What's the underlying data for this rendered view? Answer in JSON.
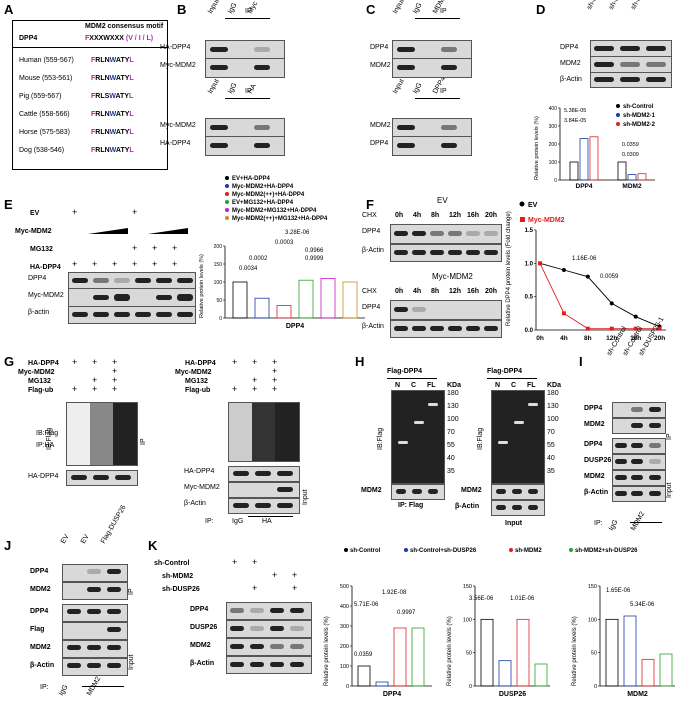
{
  "panels": {
    "A": {
      "label": "A",
      "col1": "DPP4",
      "col2": "MDM2 consensus motif",
      "motif_prefix": "F",
      "motif_mid": "XXXWXXX",
      "motif_suffix": "(V / I / L)",
      "rows": [
        {
          "species": "Human (559-567)",
          "seq": [
            "F",
            "RLN",
            "W",
            "ATY",
            "L"
          ]
        },
        {
          "species": "Mouse (553-561)",
          "seq": [
            "F",
            "RLN",
            "W",
            "ATY",
            "L"
          ]
        },
        {
          "species": "Pig (559-567)",
          "seq": [
            "F",
            "RLS",
            "W",
            "ATY",
            "L"
          ]
        },
        {
          "species": "Cattle (558-566)",
          "seq": [
            "F",
            "RLN",
            "W",
            "ATY",
            "L"
          ]
        },
        {
          "species": "Horse (575-583)",
          "seq": [
            "F",
            "RLN",
            "W",
            "ATY",
            "L"
          ]
        },
        {
          "species": "Dog (538-546)",
          "seq": [
            "F",
            "RLN",
            "W",
            "ATY",
            "L"
          ]
        }
      ]
    },
    "B": {
      "label": "B",
      "ip": "IP",
      "lanes1": [
        "Input",
        "IgG",
        "Myc"
      ],
      "rows1": [
        "HA-DPP4",
        "Myc-MDM2"
      ],
      "lanes2": [
        "Input",
        "IgG",
        "HA"
      ],
      "rows2": [
        "Myc-MDM2",
        "HA-DPP4"
      ]
    },
    "C": {
      "label": "C",
      "ip": "IP",
      "lanes1": [
        "Input",
        "IgG",
        "MDM2"
      ],
      "rows1": [
        "DPP4",
        "MDM2"
      ],
      "lanes2": [
        "Input",
        "IgG",
        "DPP4"
      ],
      "rows2": [
        "MDM2",
        "DPP4"
      ]
    },
    "D": {
      "label": "D",
      "lanes": [
        "sh-Control",
        "sh-MDM2-1",
        "sh-MDM2-2"
      ],
      "rows": [
        "DPP4",
        "MDM2",
        "β-Actin"
      ],
      "legend": [
        "sh-Control",
        "sh-MDM2-1",
        "sh-MDM2-2"
      ],
      "ylabel": "Relative protein levels (%)",
      "groups": [
        "DPP4",
        "MDM2"
      ],
      "stats": [
        "5.38E-05",
        "3.84E-05",
        "0.0359",
        "0.0309"
      ]
    },
    "E": {
      "label": "E",
      "row_labels": [
        "EV",
        "Myc-MDM2",
        "MG132",
        "HA-DPP4"
      ],
      "blot_rows": [
        "DPP4",
        "Myc-MDM2",
        "β-actin"
      ],
      "signs_ev": [
        "+",
        "",
        "",
        "+",
        "",
        ""
      ],
      "signs_mg": [
        "",
        "",
        "",
        "+",
        "+",
        "+"
      ],
      "signs_ha": [
        "+",
        "+",
        "+",
        "+",
        "+",
        "+"
      ],
      "legend": [
        "EV+HA-DPP4",
        "Myc-MDM2+HA-DPP4",
        "Myc-MDM2(++)+HA-DPP4",
        "EV+MG132+HA-DPP4",
        "Myc-MDM2+MG132+HA-DPP4",
        "Myc-MDM2(++)+MG132+HA-DPP4"
      ],
      "ylabel": "Relative protein levels (%)",
      "xlabel": "DPP4",
      "stats": [
        "0.0034",
        "0.0002",
        "0.9999",
        "0.9966",
        "0.0003",
        "3.28E-06"
      ]
    },
    "F": {
      "label": "F",
      "ev_title": "EV",
      "mdm_title": "Myc-MDM2",
      "chx": "CHX",
      "times": [
        "0h",
        "4h",
        "8h",
        "12h",
        "16h",
        "20h"
      ],
      "rows": [
        "DPP4",
        "β-Actin"
      ],
      "legend": [
        "EV",
        "Myc-MDM2"
      ],
      "ylabel": "Relative DPP4 protein levels (Fold change)",
      "stats": [
        "1.16E-06",
        "0.0059"
      ]
    },
    "G": {
      "label": "G",
      "rows": [
        "HA-DPP4",
        "Myc-MDM2",
        "MG132",
        "Flag-ub"
      ],
      "blot_ib": "IB:Flag",
      "blot_ip": "IP:HA",
      "ip_side": "IP",
      "bottom": "HA-DPP4",
      "right_rows": [
        "HA-DPP4",
        "Myc-MDM2",
        "β-Actin"
      ],
      "right_ip": "IP:",
      "right_lanes": [
        "IgG",
        "HA"
      ],
      "input": "Input"
    },
    "H": {
      "label": "H",
      "title": "Flag-DPP4",
      "lanes": [
        "N",
        "C",
        "FL"
      ],
      "kda": "KDa",
      "markers": [
        "180",
        "130",
        "100",
        "70",
        "55",
        "40",
        "35"
      ],
      "ib": "IB:Flag",
      "mdm2": "MDM2",
      "actin": "β-Actin",
      "ip_caption": "IP: Flag",
      "input_caption": "Input"
    },
    "I": {
      "label": "I",
      "lanes": [
        "sh-Control",
        "sh-Control",
        "sh-DUSP26-1"
      ],
      "rows": [
        "DPP4",
        "MDM2",
        "DPP4",
        "DUSP26",
        "MDM2",
        "β-Actin"
      ],
      "ip": "IP",
      "input": "Input",
      "bottom_ip": "IP:",
      "bottom_lanes": [
        "IgG",
        "MDM2"
      ]
    },
    "J": {
      "label": "J",
      "lanes": [
        "EV",
        "EV",
        "Flag-DUSP26"
      ],
      "rows": [
        "DPP4",
        "MDM2",
        "DPP4",
        "Flag",
        "MDM2",
        "β-Actin"
      ],
      "ip": "IP",
      "input": "Input",
      "bottom_ip": "IP:",
      "bottom_lanes": [
        "IgG",
        "MDM2"
      ]
    },
    "K": {
      "label": "K",
      "row_labels": [
        "sh-Control",
        "sh-MDM2",
        "sh-DUSP26"
      ],
      "blot_rows": [
        "DPP4",
        "DUSP26",
        "MDM2",
        "β-Actin"
      ],
      "legend": [
        "sh-Control",
        "sh-Control+sh-DUSP26",
        "sh-MDM2",
        "sh-MDM2+sh-DUSP26"
      ],
      "ylabel": "Relative protein levels (%)",
      "charts": [
        {
          "xlabel": "DPP4",
          "stats": [
            "0.0359",
            "5.71E-06",
            "1.92E-08",
            "0.9997"
          ]
        },
        {
          "xlabel": "DUSP26",
          "stats": [
            "3.56E-06",
            "1.01E-06"
          ]
        },
        {
          "xlabel": "MDM2",
          "stats": [
            "1.65E-06",
            "5.34E-06"
          ]
        }
      ]
    }
  },
  "colors": {
    "black": "#000000",
    "blue": "#1a3aa8",
    "red": "#e02020",
    "green": "#2ca02c",
    "magenta": "#c020c0",
    "orange": "#d08a20"
  },
  "chart_data": [
    {
      "type": "bar",
      "categories": [
        "DPP4",
        "MDM2"
      ],
      "series": [
        {
          "name": "sh-Control",
          "values": [
            100,
            100
          ]
        },
        {
          "name": "sh-MDM2-1",
          "values": [
            230,
            30
          ]
        },
        {
          "name": "sh-MDM2-2",
          "values": [
            240,
            35
          ]
        }
      ],
      "ylim": [
        0,
        400
      ],
      "ylabel": "Relative protein levels (%)"
    },
    {
      "type": "bar",
      "categories": [
        "DPP4"
      ],
      "series": [
        {
          "name": "EV+HA-DPP4",
          "values": [
            100
          ]
        },
        {
          "name": "Myc-MDM2+HA-DPP4",
          "values": [
            55
          ]
        },
        {
          "name": "Myc-MDM2(++)+HA-DPP4",
          "values": [
            35
          ]
        },
        {
          "name": "EV+MG132+HA-DPP4",
          "values": [
            105
          ]
        },
        {
          "name": "Myc-MDM2+MG132+HA-DPP4",
          "values": [
            110
          ]
        },
        {
          "name": "Myc-MDM2(++)+MG132+HA-DPP4",
          "values": [
            100
          ]
        }
      ],
      "ylim": [
        0,
        200
      ],
      "ylabel": "Relative protein levels (%)"
    },
    {
      "type": "line",
      "x": [
        "0h",
        "4h",
        "8h",
        "12h",
        "16h",
        "20h"
      ],
      "series": [
        {
          "name": "EV",
          "values": [
            1.0,
            0.9,
            0.8,
            0.4,
            0.2,
            0.05
          ]
        },
        {
          "name": "Myc-MDM2",
          "values": [
            1.0,
            0.25,
            0.02,
            0.02,
            0.02,
            0.02
          ]
        }
      ],
      "ylim": [
        0,
        1.5
      ],
      "ylabel": "Relative DPP4 protein levels (Fold change)"
    },
    {
      "type": "bar",
      "categories": [
        "DPP4"
      ],
      "series": [
        {
          "name": "sh-Control",
          "values": [
            100
          ]
        },
        {
          "name": "sh-Control+sh-DUSP26",
          "values": [
            20
          ]
        },
        {
          "name": "sh-MDM2",
          "values": [
            290
          ]
        },
        {
          "name": "sh-MDM2+sh-DUSP26",
          "values": [
            290
          ]
        }
      ],
      "ylim": [
        0,
        500
      ],
      "ylabel": "Relative protein levels (%)"
    },
    {
      "type": "bar",
      "categories": [
        "DUSP26"
      ],
      "series": [
        {
          "name": "sh-Control",
          "values": [
            100
          ]
        },
        {
          "name": "sh-Control+sh-DUSP26",
          "values": [
            38
          ]
        },
        {
          "name": "sh-MDM2",
          "values": [
            100
          ]
        },
        {
          "name": "sh-MDM2+sh-DUSP26",
          "values": [
            33
          ]
        }
      ],
      "ylim": [
        0,
        150
      ],
      "ylabel": "Relative protein levels (%)"
    },
    {
      "type": "bar",
      "categories": [
        "MDM2"
      ],
      "series": [
        {
          "name": "sh-Control",
          "values": [
            100
          ]
        },
        {
          "name": "sh-Control+sh-DUSP26",
          "values": [
            105
          ]
        },
        {
          "name": "sh-MDM2",
          "values": [
            40
          ]
        },
        {
          "name": "sh-MDM2+sh-DUSP26",
          "values": [
            48
          ]
        }
      ],
      "ylim": [
        0,
        150
      ],
      "ylabel": "Relative protein levels (%)"
    }
  ]
}
